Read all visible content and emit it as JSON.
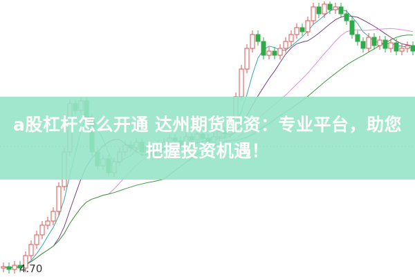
{
  "title": "a股杠杆怎么开通 达州期货配资：专业平台，助您把握投资机遇！",
  "chart_data": {
    "type": "candlestick",
    "min_price_label": "4.70",
    "closes": [
      4.72,
      4.7,
      4.73,
      4.71,
      4.8,
      4.88,
      4.95,
      5.02,
      5.05,
      5.12,
      5.3,
      5.55,
      5.9,
      5.85,
      5.92,
      5.8,
      5.55,
      5.45,
      5.5,
      5.4,
      5.48,
      5.55,
      5.6,
      5.58,
      5.62,
      5.55,
      5.58,
      5.52,
      5.6,
      5.62,
      5.65,
      5.63,
      5.6,
      5.66,
      5.64,
      5.68,
      5.65,
      5.62,
      5.66,
      5.7,
      5.68,
      5.75,
      5.95,
      6.15,
      6.3,
      6.4,
      6.35,
      6.25,
      6.28,
      6.25,
      6.3,
      6.35,
      6.4,
      6.45,
      6.42,
      6.5,
      6.6,
      6.55,
      6.62,
      6.58,
      6.6,
      6.55,
      6.5,
      6.4,
      6.35,
      6.3,
      6.38,
      6.32,
      6.36,
      6.3,
      6.34,
      6.28,
      6.3,
      6.32,
      6.28
    ],
    "moving_averages": [
      {
        "period": 5,
        "color": "#3aa6a0"
      },
      {
        "period": 10,
        "color": "#7a3f7a"
      },
      {
        "period": 20,
        "color": "#e08be0"
      },
      {
        "period": 30,
        "color": "#3a9a3a"
      }
    ],
    "up_color": "#d9534f",
    "down_color": "#2eaa4a",
    "grid": false
  }
}
